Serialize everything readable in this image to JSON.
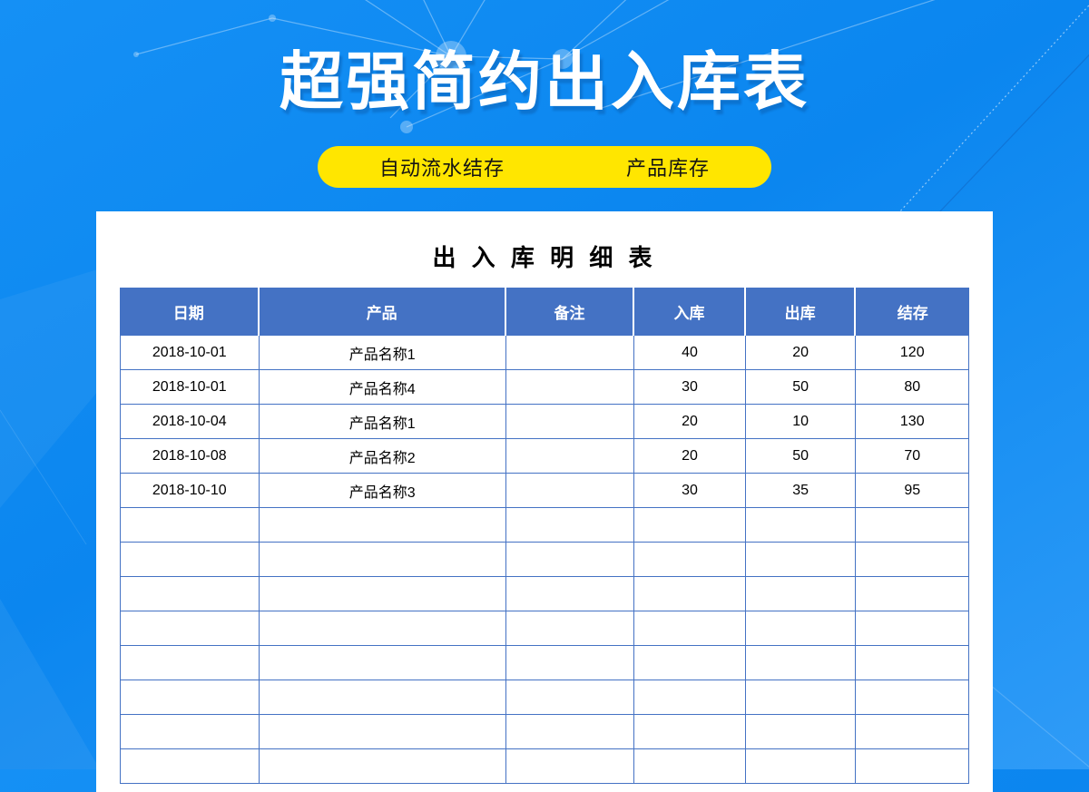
{
  "hero": {
    "title": "超强简约出入库表",
    "pills": [
      {
        "label": "自动流水结存"
      },
      {
        "label": "产品库存"
      }
    ]
  },
  "sheet": {
    "title": "出 入 库 明 细 表",
    "columns": [
      "日期",
      "产品",
      "备注",
      "入库",
      "出库",
      "结存"
    ],
    "rows": [
      [
        "2018-10-01",
        "产品名称1",
        "",
        "40",
        "20",
        "120"
      ],
      [
        "2018-10-01",
        "产品名称4",
        "",
        "30",
        "50",
        "80"
      ],
      [
        "2018-10-04",
        "产品名称1",
        "",
        "20",
        "10",
        "130"
      ],
      [
        "2018-10-08",
        "产品名称2",
        "",
        "20",
        "50",
        "70"
      ],
      [
        "2018-10-10",
        "产品名称3",
        "",
        "30",
        "35",
        "95"
      ]
    ],
    "empty_row_count": 8
  },
  "colors": {
    "background_blue": "#0d87f0",
    "header_blue": "#4472c4",
    "grid_blue": "#4472c4",
    "pill_yellow": "#ffe600",
    "title_white": "#ffffff"
  }
}
